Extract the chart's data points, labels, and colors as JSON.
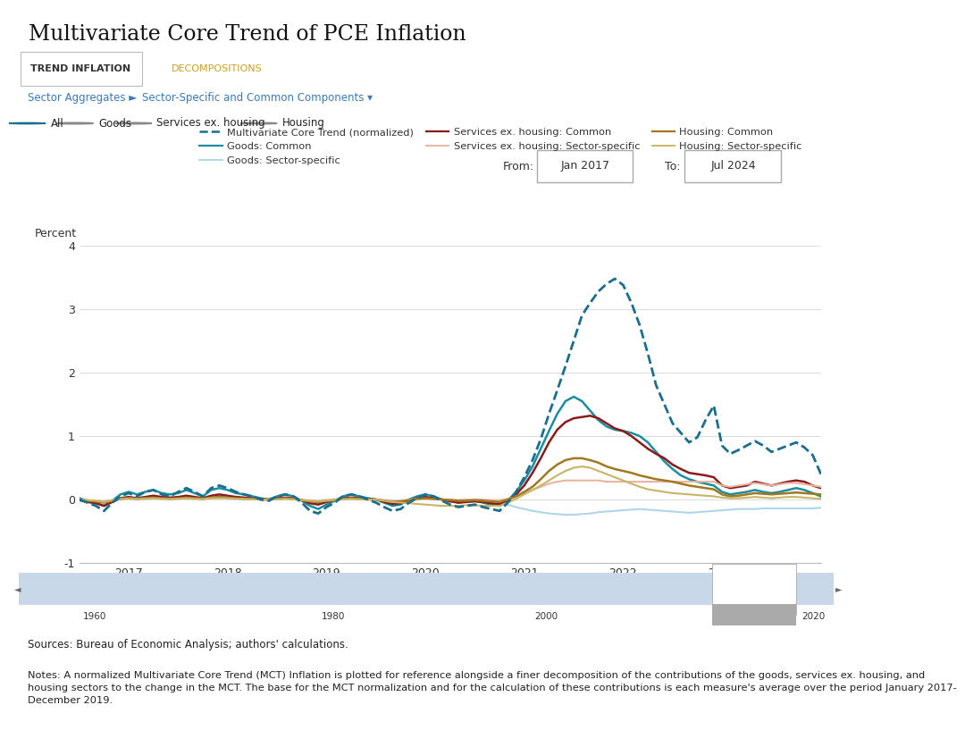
{
  "title": "Multivariate Core Trend of PCE Inflation",
  "tab1": "TREND INFLATION",
  "tab2": "DECOMPOSITIONS",
  "nav1": "Sector Aggregates ►",
  "nav2": "Sector-Specific and Common Components ▾",
  "radio_labels": [
    "All",
    "Goods",
    "Services ex. housing",
    "Housing"
  ],
  "from_label": "From:",
  "from_value": "Jan 2017",
  "to_label": "To:",
  "to_value": "Jul 2024",
  "ylabel": "Percent",
  "ylim": [
    -1,
    4
  ],
  "yticks": [
    -1,
    0,
    1,
    2,
    3,
    4
  ],
  "source_text": "Sources: Bureau of Economic Analysis; authors' calculations.",
  "notes_text": "Notes: A normalized Multivariate Core Trend (MCT) Inflation is plotted for reference alongside a finer decomposition of the contributions of the goods, services ex. housing, and\nhousing sectors to the change in the MCT. The base for the MCT normalization and for the calculation of these contributions is each measure's average over the period January 2017-\nDecember 2019.",
  "legend": [
    {
      "label": "Multivariate Core Trend (normalized)",
      "color": "#1a6e8e",
      "style": "dashed",
      "lw": 2.0
    },
    {
      "label": "Goods: Common",
      "color": "#1a8ea0",
      "style": "solid",
      "lw": 1.8
    },
    {
      "label": "Goods: Sector-specific",
      "color": "#aed6e8",
      "style": "solid",
      "lw": 1.5
    },
    {
      "label": "Services ex. housing: Common",
      "color": "#8b1a1a",
      "style": "solid",
      "lw": 1.8
    },
    {
      "label": "Services ex. housing: Sector-specific",
      "color": "#e8b4a0",
      "style": "solid",
      "lw": 1.5
    },
    {
      "label": "Housing: Common",
      "color": "#a07820",
      "style": "solid",
      "lw": 1.8
    },
    {
      "label": "Housing: Sector-specific",
      "color": "#c8b464",
      "style": "solid",
      "lw": 1.5
    }
  ],
  "bg_color": "#ffffff",
  "plot_bg": "#ffffff",
  "grid_color": "#dddddd",
  "tab_active_color": "#333333",
  "tab_inactive_color": "#c8a020",
  "nav_color": "#3a7ab8",
  "border_color": "#cccccc",
  "slider_bg": "#c8d8e8",
  "mct": [
    0.0,
    -0.05,
    -0.1,
    -0.18,
    -0.05,
    0.05,
    0.1,
    0.05,
    0.12,
    0.15,
    0.08,
    0.05,
    0.12,
    0.18,
    0.12,
    0.05,
    0.18,
    0.22,
    0.18,
    0.12,
    0.08,
    0.05,
    0.0,
    -0.02,
    0.05,
    0.08,
    0.05,
    -0.05,
    -0.18,
    -0.22,
    -0.12,
    -0.05,
    0.05,
    0.08,
    0.05,
    0.0,
    -0.05,
    -0.12,
    -0.18,
    -0.15,
    -0.05,
    0.02,
    0.08,
    0.05,
    -0.02,
    -0.08,
    -0.12,
    -0.1,
    -0.08,
    -0.12,
    -0.15,
    -0.18,
    -0.05,
    0.12,
    0.35,
    0.62,
    0.95,
    1.35,
    1.72,
    2.1,
    2.5,
    2.9,
    3.1,
    3.28,
    3.4,
    3.48,
    3.38,
    3.1,
    2.75,
    2.3,
    1.8,
    1.5,
    1.2,
    1.05,
    0.9,
    0.98,
    1.25,
    1.48,
    0.85,
    0.72,
    0.78,
    0.85,
    0.92,
    0.85,
    0.75,
    0.8,
    0.85,
    0.9,
    0.82,
    0.7,
    0.4
  ],
  "goods_common": [
    0.02,
    -0.02,
    -0.05,
    -0.1,
    -0.02,
    0.08,
    0.12,
    0.08,
    0.12,
    0.15,
    0.1,
    0.08,
    0.1,
    0.15,
    0.1,
    0.05,
    0.15,
    0.18,
    0.15,
    0.1,
    0.08,
    0.05,
    0.02,
    0.0,
    0.05,
    0.08,
    0.05,
    -0.02,
    -0.1,
    -0.15,
    -0.08,
    -0.02,
    0.05,
    0.08,
    0.05,
    0.02,
    0.0,
    -0.05,
    -0.1,
    -0.08,
    0.0,
    0.05,
    0.08,
    0.05,
    0.0,
    -0.02,
    -0.05,
    -0.03,
    -0.02,
    -0.05,
    -0.08,
    -0.1,
    -0.02,
    0.12,
    0.3,
    0.52,
    0.8,
    1.08,
    1.35,
    1.55,
    1.62,
    1.55,
    1.4,
    1.25,
    1.15,
    1.1,
    1.08,
    1.05,
    1.0,
    0.9,
    0.75,
    0.6,
    0.48,
    0.38,
    0.32,
    0.28,
    0.25,
    0.22,
    0.12,
    0.08,
    0.1,
    0.12,
    0.15,
    0.12,
    0.1,
    0.12,
    0.15,
    0.18,
    0.15,
    0.1,
    0.05
  ],
  "goods_sector": [
    0.0,
    -0.03,
    -0.06,
    -0.1,
    -0.04,
    0.02,
    0.04,
    0.02,
    0.04,
    0.05,
    0.03,
    0.02,
    0.03,
    0.05,
    0.03,
    0.01,
    0.05,
    0.06,
    0.05,
    0.03,
    0.02,
    0.01,
    0.0,
    -0.01,
    0.01,
    0.02,
    0.01,
    -0.01,
    -0.03,
    -0.05,
    -0.03,
    -0.01,
    0.01,
    0.02,
    0.01,
    0.0,
    -0.01,
    -0.03,
    -0.04,
    -0.03,
    -0.01,
    0.01,
    0.02,
    0.01,
    0.0,
    -0.01,
    -0.02,
    -0.01,
    -0.01,
    -0.02,
    -0.03,
    -0.04,
    -0.08,
    -0.12,
    -0.15,
    -0.18,
    -0.2,
    -0.22,
    -0.23,
    -0.24,
    -0.24,
    -0.23,
    -0.22,
    -0.2,
    -0.19,
    -0.18,
    -0.17,
    -0.16,
    -0.15,
    -0.16,
    -0.17,
    -0.18,
    -0.19,
    -0.2,
    -0.21,
    -0.2,
    -0.19,
    -0.18,
    -0.17,
    -0.16,
    -0.15,
    -0.15,
    -0.15,
    -0.14,
    -0.14,
    -0.14,
    -0.14,
    -0.14,
    -0.14,
    -0.14,
    -0.13
  ],
  "services_common": [
    -0.01,
    -0.04,
    -0.06,
    -0.1,
    -0.04,
    0.02,
    0.04,
    0.02,
    0.04,
    0.06,
    0.04,
    0.03,
    0.04,
    0.06,
    0.04,
    0.02,
    0.06,
    0.08,
    0.06,
    0.04,
    0.03,
    0.02,
    0.01,
    0.0,
    0.02,
    0.03,
    0.02,
    -0.01,
    -0.06,
    -0.08,
    -0.04,
    -0.01,
    0.02,
    0.03,
    0.02,
    0.01,
    0.0,
    -0.04,
    -0.07,
    -0.06,
    -0.01,
    0.02,
    0.04,
    0.02,
    0.0,
    -0.03,
    -0.05,
    -0.04,
    -0.03,
    -0.04,
    -0.06,
    -0.07,
    -0.01,
    0.08,
    0.22,
    0.42,
    0.65,
    0.9,
    1.1,
    1.22,
    1.28,
    1.3,
    1.32,
    1.28,
    1.2,
    1.12,
    1.08,
    1.0,
    0.9,
    0.8,
    0.72,
    0.65,
    0.55,
    0.48,
    0.42,
    0.4,
    0.38,
    0.35,
    0.22,
    0.18,
    0.2,
    0.22,
    0.28,
    0.25,
    0.22,
    0.25,
    0.28,
    0.3,
    0.28,
    0.22,
    0.18
  ],
  "services_sector": [
    0.0,
    -0.01,
    -0.02,
    -0.03,
    -0.01,
    0.01,
    0.02,
    0.01,
    0.02,
    0.02,
    0.01,
    0.01,
    0.01,
    0.02,
    0.01,
    0.01,
    0.02,
    0.03,
    0.02,
    0.01,
    0.01,
    0.01,
    0.0,
    0.0,
    0.01,
    0.01,
    0.01,
    0.0,
    -0.02,
    -0.02,
    -0.01,
    0.0,
    0.01,
    0.01,
    0.01,
    0.0,
    0.0,
    -0.01,
    -0.02,
    -0.02,
    0.0,
    0.01,
    0.01,
    0.01,
    0.0,
    0.0,
    -0.01,
    0.0,
    0.0,
    0.0,
    -0.01,
    -0.01,
    0.01,
    0.05,
    0.1,
    0.15,
    0.2,
    0.25,
    0.28,
    0.3,
    0.3,
    0.3,
    0.3,
    0.3,
    0.28,
    0.28,
    0.28,
    0.28,
    0.28,
    0.28,
    0.28,
    0.28,
    0.28,
    0.28,
    0.28,
    0.28,
    0.28,
    0.28,
    0.22,
    0.2,
    0.22,
    0.24,
    0.26,
    0.24,
    0.22,
    0.24,
    0.26,
    0.26,
    0.24,
    0.22,
    0.2
  ],
  "housing_common": [
    0.0,
    -0.02,
    -0.03,
    -0.05,
    -0.02,
    0.01,
    0.02,
    0.01,
    0.02,
    0.03,
    0.02,
    0.01,
    0.02,
    0.03,
    0.02,
    0.01,
    0.03,
    0.04,
    0.03,
    0.02,
    0.01,
    0.01,
    0.0,
    0.0,
    0.01,
    0.02,
    0.01,
    -0.01,
    -0.03,
    -0.04,
    -0.02,
    -0.01,
    0.01,
    0.02,
    0.01,
    0.0,
    0.0,
    -0.02,
    -0.04,
    -0.03,
    -0.01,
    0.01,
    0.02,
    0.01,
    0.0,
    -0.01,
    -0.02,
    -0.02,
    -0.01,
    -0.02,
    -0.03,
    -0.04,
    0.0,
    0.05,
    0.12,
    0.2,
    0.32,
    0.45,
    0.55,
    0.62,
    0.65,
    0.65,
    0.62,
    0.58,
    0.52,
    0.48,
    0.45,
    0.42,
    0.38,
    0.35,
    0.32,
    0.3,
    0.28,
    0.25,
    0.22,
    0.2,
    0.18,
    0.16,
    0.08,
    0.05,
    0.06,
    0.08,
    0.1,
    0.09,
    0.08,
    0.09,
    0.1,
    0.11,
    0.1,
    0.09,
    0.08
  ],
  "housing_sector": [
    0.0,
    -0.01,
    -0.02,
    -0.04,
    -0.01,
    0.01,
    0.01,
    0.01,
    0.01,
    0.02,
    0.01,
    0.01,
    0.01,
    0.02,
    0.01,
    0.01,
    0.02,
    0.02,
    0.02,
    0.01,
    0.01,
    0.0,
    0.0,
    0.0,
    0.0,
    0.01,
    0.0,
    -0.01,
    -0.02,
    -0.03,
    -0.02,
    -0.01,
    0.0,
    0.01,
    0.0,
    0.0,
    0.0,
    -0.02,
    -0.04,
    -0.05,
    -0.06,
    -0.07,
    -0.08,
    -0.09,
    -0.1,
    -0.1,
    -0.1,
    -0.09,
    -0.09,
    -0.1,
    -0.1,
    -0.1,
    -0.05,
    0.01,
    0.08,
    0.15,
    0.22,
    0.3,
    0.38,
    0.45,
    0.5,
    0.52,
    0.5,
    0.45,
    0.4,
    0.35,
    0.3,
    0.25,
    0.2,
    0.16,
    0.14,
    0.12,
    0.1,
    0.09,
    0.08,
    0.07,
    0.06,
    0.05,
    0.03,
    0.02,
    0.02,
    0.03,
    0.04,
    0.03,
    0.02,
    0.03,
    0.04,
    0.04,
    0.03,
    0.02,
    0.01
  ]
}
